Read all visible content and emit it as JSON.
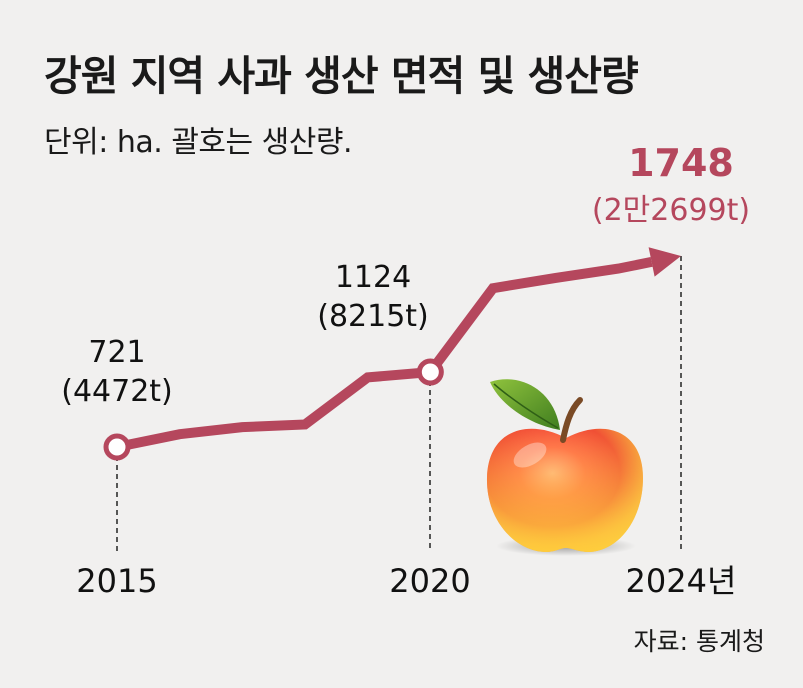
{
  "title": "강원 지역 사과 생산 면적 및 생산량",
  "subtitle": "단위: ha. 괄호는 생산량.",
  "source": "자료: 통계청",
  "colors": {
    "line": "#b5475d",
    "highlight": "#b5475d",
    "text": "#111111"
  },
  "chart_data": {
    "type": "line",
    "title": "강원 지역 사과 생산 면적 및 생산량",
    "units": "ha",
    "grid": false,
    "legend": "none",
    "x_ticks": [
      "2015",
      "2020",
      "2024년"
    ],
    "series": [
      {
        "values": [
          {
            "x": 2015,
            "y": 721
          },
          {
            "x": 2016,
            "y": 790
          },
          {
            "x": 2017,
            "y": 828
          },
          {
            "x": 2018,
            "y": 842
          },
          {
            "x": 2019,
            "y": 1095
          },
          {
            "x": 2020,
            "y": 1124
          },
          {
            "x": 2021,
            "y": 1575
          },
          {
            "x": 2022,
            "y": 1630
          },
          {
            "x": 2023,
            "y": 1680
          },
          {
            "x": 2024,
            "y": 1748
          }
        ]
      }
    ],
    "labeled_points": [
      {
        "x": 2015,
        "area": "721",
        "production": "(4472t)"
      },
      {
        "x": 2020,
        "area": "1124",
        "production": "(8215t)"
      },
      {
        "x": 2024,
        "area": "1748",
        "production": "(2만2699t)"
      }
    ]
  }
}
